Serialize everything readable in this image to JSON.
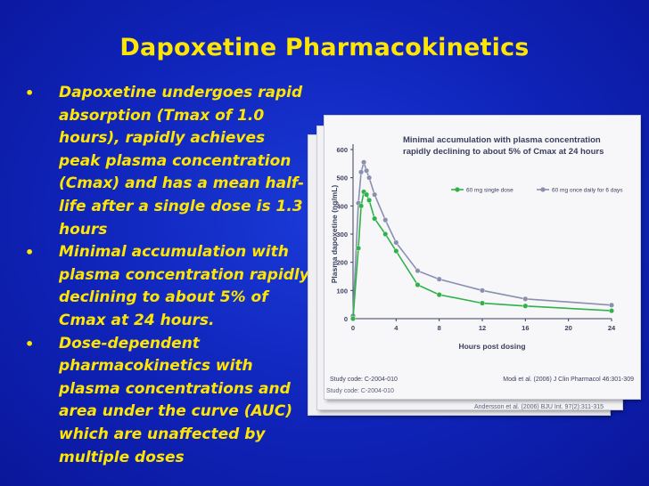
{
  "slide": {
    "title": "Dapoxetine Pharmacokinetics",
    "bullets": [
      "Dapoxetine undergoes rapid absorption (Tmax of 1.0 hours), rapidly achieves peak plasma concentration (Cmax) and has  a mean half-life after a single dose is 1.3 hours",
      "Minimal accumulation with plasma concentration rapidly declining to about 5% of Cmax at 24 hours.",
      "Dose-dependent pharmacokinetics with plasma concentrations and area under the curve (AUC) which are unaffected by multiple doses"
    ],
    "bullet_symbol": "•"
  },
  "colors": {
    "background": "#1230c8",
    "title_text": "#ffe600",
    "series_single": "#2fb24a",
    "series_multiple": "#8a8fae"
  },
  "chart_data": {
    "type": "line",
    "title": "Minimal accumulation with plasma concentration rapidly declining to about 5% of Cmax at 24 hours",
    "xlabel": "Hours post dosing",
    "ylabel": "Plasma dapoxetine (ng/mL)",
    "xlim": [
      0,
      24
    ],
    "ylim": [
      0,
      600
    ],
    "xticks": [
      0,
      4,
      8,
      12,
      16,
      20,
      24
    ],
    "yticks": [
      0,
      100,
      200,
      300,
      400,
      500,
      600
    ],
    "legend_position": "top-right",
    "grid": false,
    "series": [
      {
        "name": "60 mg single dose",
        "color": "#2fb24a",
        "x": [
          0,
          0.5,
          0.75,
          1,
          1.25,
          1.5,
          2,
          3,
          4,
          6,
          8,
          12,
          16,
          24
        ],
        "y": [
          0,
          250,
          400,
          450,
          440,
          420,
          355,
          300,
          240,
          120,
          85,
          55,
          45,
          28
        ]
      },
      {
        "name": "60 mg once daily for 6 days",
        "color": "#8a8fae",
        "x": [
          0,
          0.5,
          0.75,
          1,
          1.25,
          1.5,
          2,
          3,
          4,
          6,
          8,
          12,
          16,
          24
        ],
        "y": [
          10,
          410,
          520,
          555,
          525,
          500,
          440,
          350,
          270,
          170,
          140,
          100,
          70,
          48
        ]
      }
    ],
    "footnote_left": "Study code: C-2004-010",
    "footnote_right": "Modi et al. (2006) J Clin Pharmacol 46:301-309"
  },
  "back_cards": {
    "ref_1": "Andersson et al. (2006) BJU Int. 97(2):311-315",
    "ref_2": "Study code: C-2004-010"
  }
}
